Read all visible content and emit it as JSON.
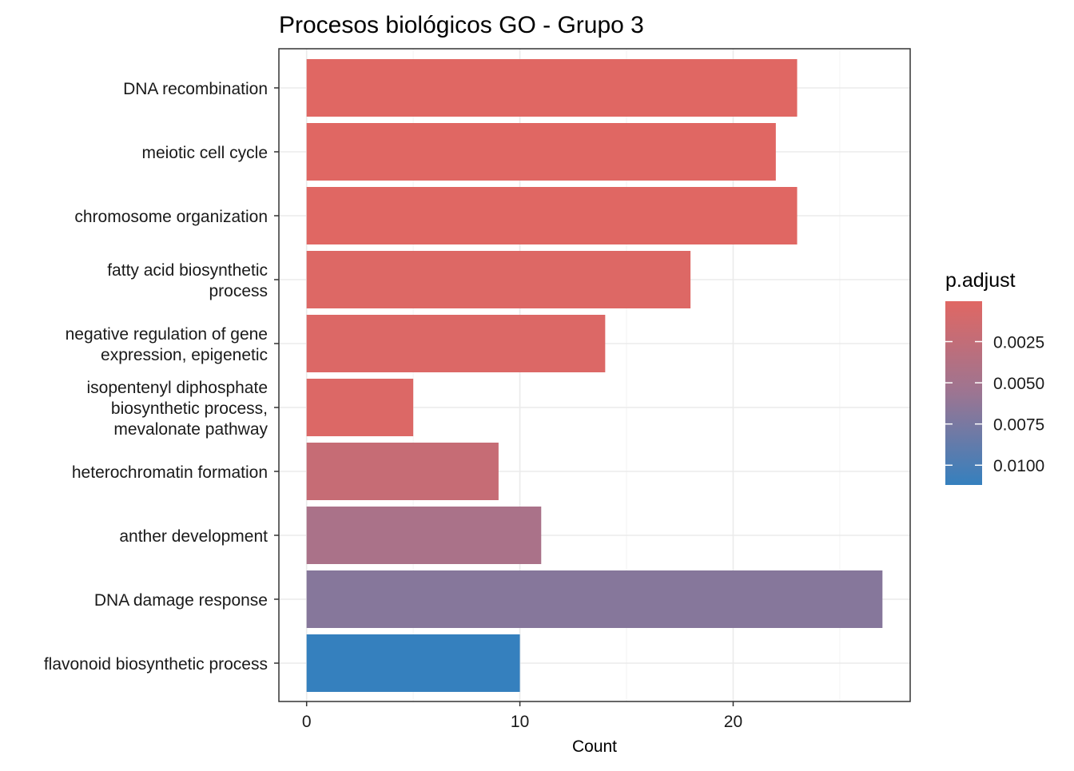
{
  "chart_data": {
    "type": "bar",
    "orientation": "horizontal",
    "title": "Procesos biológicos GO - Grupo 3",
    "xlabel": "Count",
    "ylabel": "",
    "xlim": [
      -1.3,
      28.3
    ],
    "x_ticks": [
      0,
      10,
      20
    ],
    "x_tick_labels": [
      "0",
      "10",
      "20"
    ],
    "grid": true,
    "categories": [
      [
        "DNA recombination"
      ],
      [
        "meiotic cell cycle"
      ],
      [
        "chromosome organization"
      ],
      [
        "fatty acid biosynthetic",
        "process"
      ],
      [
        "negative regulation of gene",
        "expression, epigenetic"
      ],
      [
        "isopentenyl diphosphate",
        "biosynthetic process,",
        "mevalonate pathway"
      ],
      [
        "heterochromatin formation"
      ],
      [
        "anther development"
      ],
      [
        "DNA damage response"
      ],
      [
        "flavonoid biosynthetic process"
      ]
    ],
    "values": [
      23,
      22,
      23,
      18,
      14,
      5,
      9,
      11,
      27,
      10
    ],
    "p_adjust": [
      5e-05,
      5e-05,
      5e-05,
      0.0003,
      0.0004,
      0.0004,
      0.0022,
      0.0045,
      0.0068,
      0.0112
    ],
    "legend": {
      "title": "p.adjust",
      "position": "right",
      "range": [
        5e-05,
        0.0112
      ],
      "ticks": [
        0.0025,
        0.005,
        0.0075,
        0.01
      ],
      "tick_labels": [
        "0.0025",
        "0.0050",
        "0.0075",
        "0.0100"
      ],
      "color_low": "#E06763",
      "color_high": "#3580BE"
    }
  }
}
